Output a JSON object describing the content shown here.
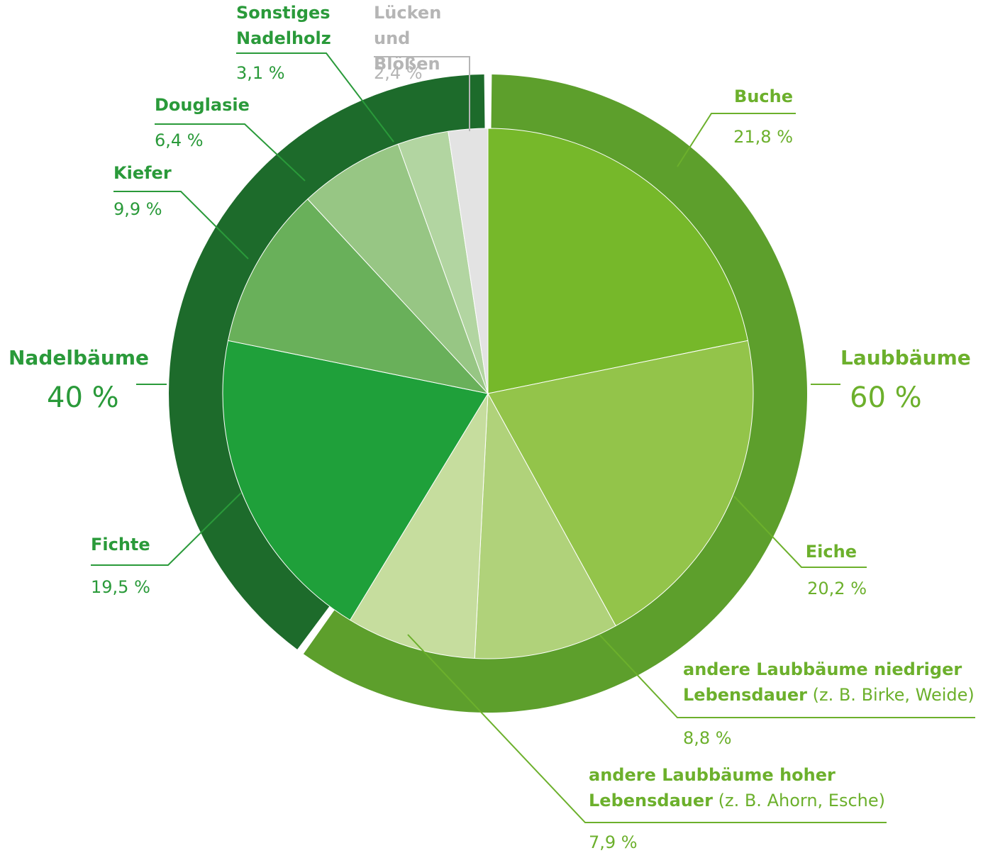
{
  "chart_data": {
    "type": "pie",
    "categories": [
      "Buche",
      "Eiche",
      "andere Laubbäume niedriger Lebensdauer",
      "andere Laubbäume hoher Lebensdauer",
      "Fichte",
      "Kiefer",
      "Douglasie",
      "Sonstiges Nadelholz",
      "Lücken und Blößen"
    ],
    "details": [
      null,
      null,
      "(z. B. Birke, Weide)",
      "(z. B. Ahorn, Esche)",
      null,
      null,
      null,
      null,
      null
    ],
    "values": [
      21.8,
      20.2,
      8.8,
      7.9,
      19.5,
      9.9,
      6.4,
      3.1,
      2.4
    ],
    "value_labels": [
      "21,8 %",
      "20,2 %",
      "8,8 %",
      "7,9 %",
      "19,5 %",
      "9,9 %",
      "6,4 %",
      "3,1 %",
      "2,4 %"
    ],
    "colors": [
      "#76b82a",
      "#93c44a",
      "#b0d27a",
      "#c6dd9e",
      "#1fa03a",
      "#69b05a",
      "#97c684",
      "#b2d5a1",
      "#e3e3e3"
    ],
    "groups": [
      {
        "name": "Laubbäume",
        "value": 60,
        "value_label": "60 %",
        "color": "#5d9f2c"
      },
      {
        "name": "Nadelbäume",
        "value": 40,
        "value_label": "40 %",
        "color": "#1d6b2b"
      }
    ]
  }
}
